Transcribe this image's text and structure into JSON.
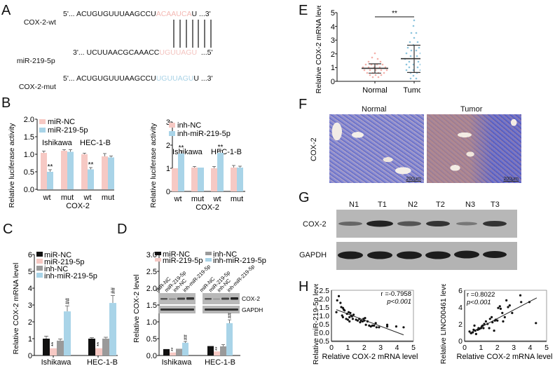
{
  "panels": {
    "A": {
      "label": "A",
      "rows": [
        {
          "name": "COX-2-wt",
          "prefix": "5'... ",
          "seq_plain": "ACUGUGUUUAAGCCU",
          "seq_hl": "ACAAUCA",
          "hl_color": "#f4b8b3",
          "seq_tail": "U",
          "suffix": " ...3'"
        },
        {
          "name": "miR-219-5p",
          "prefix": "3'... ",
          "seq_plain": "UCUUAACGCAAACC",
          "seq_hl": "UGUUAGU",
          "hl_color": "#f4c4c0",
          "seq_tail": "",
          "suffix": "  ...5'"
        },
        {
          "name": "COX-2-mut",
          "prefix": "5'... ",
          "seq_plain": "ACUGUGUUUAAGCCU",
          "seq_hl": "UGUUAGU",
          "hl_color": "#a8d2e6",
          "seq_tail": "U",
          "suffix": " ...3'"
        }
      ],
      "pairing_lines": 7
    },
    "B": {
      "label": "B"
    },
    "C": {
      "label": "C"
    },
    "D": {
      "label": "D"
    },
    "E": {
      "label": "E"
    },
    "F": {
      "label": "F",
      "columns": [
        "Normal",
        "Tumor"
      ],
      "row_label": "COX-2",
      "scale_bar": "200μm"
    },
    "G": {
      "label": "G",
      "lanes": [
        "N1",
        "T1",
        "N2",
        "T2",
        "N3",
        "T3"
      ],
      "rows": [
        "COX-2",
        "GAPDH"
      ]
    },
    "H": {
      "label": "H"
    }
  },
  "colors": {
    "pink": "#f6c9c4",
    "blue": "#a9d4e8",
    "black": "#111111",
    "gray": "#9a9a9a"
  },
  "chart_data": [
    {
      "id": "B-left",
      "type": "bar",
      "title": "",
      "xlabel": "COX-2",
      "ylabel": "Relative luciferase activity",
      "ylim": [
        0,
        2.0
      ],
      "yticks": [
        "0.0",
        "0.5",
        "1.0",
        "1.5",
        "2.0"
      ],
      "categories": [
        "wt",
        "mut",
        "wt",
        "mut"
      ],
      "group_labels": [
        "Ishikawa",
        "HEC-1-B"
      ],
      "series": [
        {
          "name": "miR-NC",
          "color": "#f6c9c4",
          "values": [
            1.04,
            1.1,
            1.0,
            0.94
          ],
          "errors": [
            0.05,
            0.03,
            0.03,
            0.08
          ]
        },
        {
          "name": "miR-219-5p",
          "color": "#a9d4e8",
          "values": [
            0.5,
            1.07,
            0.57,
            0.91
          ],
          "errors": [
            0.06,
            0.06,
            0.05,
            0.04
          ]
        }
      ],
      "annotations": [
        "**",
        "",
        "**",
        ""
      ],
      "legend_position": "top-left",
      "grid": false
    },
    {
      "id": "B-right",
      "type": "bar",
      "title": "",
      "xlabel": "COX-2",
      "ylabel": "Relative luciferase activity",
      "ylim": [
        0,
        3
      ],
      "yticks": [
        "0",
        "1",
        "2",
        "3"
      ],
      "categories": [
        "wt",
        "mut",
        "wt",
        "mut"
      ],
      "group_labels": [
        "Ishikawa",
        "HEC-1-B"
      ],
      "series": [
        {
          "name": "inh-NC",
          "color": "#f6c9c4",
          "values": [
            1.0,
            1.02,
            1.0,
            1.02
          ],
          "errors": [
            0.02,
            0.04,
            0.07,
            0.08
          ]
        },
        {
          "name": "inh-miR-219-5p",
          "color": "#a9d4e8",
          "values": [
            1.64,
            1.03,
            1.67,
            1.01
          ],
          "errors": [
            0.12,
            0.02,
            0.1,
            0.06
          ]
        }
      ],
      "annotations": [
        "**",
        "",
        "**",
        ""
      ],
      "legend_position": "top-left",
      "grid": false
    },
    {
      "id": "C",
      "type": "bar",
      "title": "",
      "xlabel": "",
      "ylabel": "Relative COX-2 mRNA level",
      "ylim": [
        0,
        6
      ],
      "yticks": [
        "0",
        "1",
        "2",
        "3",
        "4",
        "5",
        "6"
      ],
      "categories": [
        "Ishikawa",
        "HEC-1-B"
      ],
      "series": [
        {
          "name": "miR-NC",
          "color": "#111111",
          "values": [
            1.0,
            1.0
          ],
          "errors": [
            0.15,
            0.06
          ]
        },
        {
          "name": "miR-219-5p",
          "color": "#f6c9c4",
          "values": [
            0.43,
            0.43
          ],
          "errors": [
            0.05,
            0.04
          ]
        },
        {
          "name": "inh-NC",
          "color": "#9a9a9a",
          "values": [
            0.88,
            1.0
          ],
          "errors": [
            0.1,
            0.08
          ]
        },
        {
          "name": "inh-miR-219-5p",
          "color": "#a9d4e8",
          "values": [
            2.62,
            3.12
          ],
          "errors": [
            0.33,
            0.45
          ]
        }
      ],
      "annotations": {
        "miR-219-5p": "**",
        "inh-miR-219-5p": "##"
      },
      "legend_position": "top-left",
      "grid": false
    },
    {
      "id": "D",
      "type": "bar",
      "title": "",
      "xlabel": "",
      "ylabel": "Relative COX-2 level",
      "ylim": [
        0,
        3.0
      ],
      "yticks": [
        "0.0",
        "0.5",
        "1.0",
        "1.5",
        "2.0",
        "2.5",
        "3.0"
      ],
      "categories": [
        "Ishikawa",
        "HEC-1-B"
      ],
      "series": [
        {
          "name": "miR-NC",
          "color": "#111111",
          "values": [
            0.19,
            0.28
          ],
          "errors": [
            0.02,
            0.03
          ]
        },
        {
          "name": "miR-219-5p",
          "color": "#f6c9c4",
          "values": [
            0.09,
            0.12
          ],
          "errors": [
            0.01,
            0.02
          ]
        },
        {
          "name": "inh-NC",
          "color": "#9a9a9a",
          "values": [
            0.2,
            0.27
          ],
          "errors": [
            0.02,
            0.05
          ]
        },
        {
          "name": "inh-miR-219-5p",
          "color": "#a9d4e8",
          "values": [
            0.38,
            0.96
          ],
          "errors": [
            0.04,
            0.1
          ]
        }
      ],
      "annotations": {
        "miR-219-5p": "**",
        "inh-miR-219-5p": "##"
      },
      "inset_blot": {
        "lanes": [
          "miR-NC",
          "miR-219-5p",
          "inh-NC",
          "inh-miR-219-5p"
        ],
        "rows": [
          "COX-2",
          "GAPDH"
        ]
      },
      "legend_position": "top",
      "grid": false
    },
    {
      "id": "E",
      "type": "scatter",
      "title": "",
      "xlabel": "",
      "ylabel": "Relative COX-2 mRNA level",
      "ylim": [
        0,
        5
      ],
      "yticks": [
        "0",
        "1",
        "2",
        "3",
        "4",
        "5"
      ],
      "categories": [
        "Normal",
        "Tumor"
      ],
      "series": [
        {
          "name": "Normal",
          "color": "#f4b0aa",
          "mean": 0.95,
          "sd_low": 0.6,
          "sd_high": 1.3
        },
        {
          "name": "Tumor",
          "color": "#8cc4de",
          "mean": 1.65,
          "sd_low": 0.65,
          "sd_high": 2.63
        }
      ],
      "annotations": [
        "**"
      ],
      "grid": false
    },
    {
      "id": "H-left",
      "type": "scatter",
      "title": "",
      "xlabel": "Relative COX-2 mRNA level",
      "ylabel": "Relative miR-219-5p level",
      "xlim": [
        0,
        5
      ],
      "ylim": [
        -0.5,
        2.5
      ],
      "xticks": [
        "0",
        "1",
        "2",
        "3",
        "4",
        "5"
      ],
      "yticks": [
        "-0.5",
        "0.0",
        "0.5",
        "1.0",
        "1.5",
        "2.0",
        "2.5"
      ],
      "stats": {
        "r": "r =-0.7958",
        "p": "p<0.001"
      },
      "fit_line": [
        [
          0.3,
          1.35
        ],
        [
          4.4,
          -0.15
        ]
      ],
      "points": [
        [
          0.3,
          1.2
        ],
        [
          0.35,
          1.9
        ],
        [
          0.45,
          2.15
        ],
        [
          0.55,
          1.75
        ],
        [
          0.6,
          1.5
        ],
        [
          0.65,
          1.0
        ],
        [
          0.7,
          0.9
        ],
        [
          0.7,
          1.45
        ],
        [
          0.75,
          1.35
        ],
        [
          0.8,
          1.3
        ],
        [
          0.9,
          0.8
        ],
        [
          0.95,
          1.1
        ],
        [
          1.0,
          0.75
        ],
        [
          1.05,
          1.2
        ],
        [
          1.1,
          0.9
        ],
        [
          1.1,
          0.65
        ],
        [
          1.15,
          1.15
        ],
        [
          1.2,
          1.0
        ],
        [
          1.25,
          0.95
        ],
        [
          1.3,
          0.8
        ],
        [
          1.35,
          1.05
        ],
        [
          1.5,
          0.75
        ],
        [
          1.6,
          0.7
        ],
        [
          1.7,
          0.8
        ],
        [
          1.75,
          0.6
        ],
        [
          1.8,
          0.7
        ],
        [
          1.9,
          0.65
        ],
        [
          1.95,
          0.8
        ],
        [
          2.0,
          0.7
        ],
        [
          2.05,
          0.85
        ],
        [
          2.1,
          0.45
        ],
        [
          2.2,
          0.65
        ],
        [
          2.3,
          0.4
        ],
        [
          2.4,
          0.35
        ],
        [
          2.5,
          0.4
        ],
        [
          2.6,
          0.4
        ],
        [
          2.7,
          0.55
        ],
        [
          2.75,
          0.3
        ],
        [
          2.9,
          0.3
        ],
        [
          3.4,
          0.45
        ],
        [
          3.4,
          0.35
        ],
        [
          3.95,
          0.35
        ],
        [
          4.4,
          0.3
        ]
      ]
    },
    {
      "id": "H-right",
      "type": "scatter",
      "title": "",
      "xlabel": "Relative COX-2 mRNA level",
      "ylabel": "Relative LINC00461 level",
      "xlim": [
        0,
        5
      ],
      "ylim": [
        0,
        6
      ],
      "xticks": [
        "0",
        "1",
        "2",
        "3",
        "4",
        "5"
      ],
      "yticks": [
        "0",
        "2",
        "4",
        "6"
      ],
      "stats": {
        "r": "r =0.8022",
        "p": "p<0.001"
      },
      "fit_line": [
        [
          0.3,
          0.9
        ],
        [
          4.4,
          5.1
        ]
      ],
      "points": [
        [
          0.3,
          1.1
        ],
        [
          0.4,
          0.9
        ],
        [
          0.5,
          1.0
        ],
        [
          0.55,
          1.3
        ],
        [
          0.6,
          1.8
        ],
        [
          0.65,
          1.2
        ],
        [
          0.7,
          0.8
        ],
        [
          0.8,
          1.3
        ],
        [
          0.85,
          1.5
        ],
        [
          0.9,
          1.4
        ],
        [
          1.0,
          1.5
        ],
        [
          1.05,
          1.7
        ],
        [
          1.1,
          1.8
        ],
        [
          1.15,
          1.5
        ],
        [
          1.2,
          2.0
        ],
        [
          1.3,
          2.3
        ],
        [
          1.4,
          2.0
        ],
        [
          1.5,
          1.5
        ],
        [
          1.55,
          2.6
        ],
        [
          1.65,
          2.8
        ],
        [
          1.7,
          2.2
        ],
        [
          1.8,
          1.2
        ],
        [
          1.85,
          2.4
        ],
        [
          1.9,
          2.5
        ],
        [
          2.0,
          2.4
        ],
        [
          2.05,
          3.9
        ],
        [
          2.15,
          4.1
        ],
        [
          2.2,
          3.8
        ],
        [
          2.3,
          3.3
        ],
        [
          2.35,
          2.3
        ],
        [
          2.45,
          2.8
        ],
        [
          2.55,
          4.8
        ],
        [
          2.65,
          4.0
        ],
        [
          2.75,
          4.2
        ],
        [
          2.9,
          3.3
        ],
        [
          3.4,
          5.4
        ],
        [
          3.45,
          4.6
        ],
        [
          3.95,
          4.6
        ],
        [
          4.35,
          2.1
        ]
      ]
    }
  ]
}
